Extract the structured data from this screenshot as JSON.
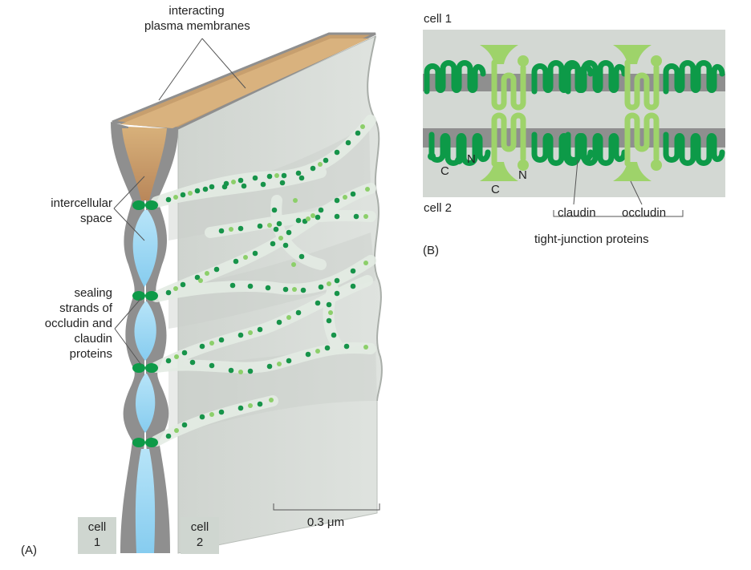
{
  "panel_a": {
    "label_top": [
      "interacting",
      "plasma membranes"
    ],
    "label_space": [
      "intercellular",
      "space"
    ],
    "label_strands": [
      "sealing",
      "strands of",
      "occludin and",
      "claudin",
      "proteins"
    ],
    "cell_left": [
      "cell",
      "1"
    ],
    "cell_right": [
      "cell",
      "2"
    ],
    "scale": "0.3 μm",
    "panel_letter": "(A)"
  },
  "panel_b": {
    "cell_top": "cell 1",
    "cell_bottom": "cell 2",
    "terminals": {
      "c1": "C",
      "n1": "N",
      "c2": "C",
      "n2": "N"
    },
    "claudin": "claudin",
    "occludin": "occludin",
    "group": "tight-junction proteins",
    "panel_letter": "(B)"
  },
  "colors": {
    "membrane_gray": "#8f8f8f",
    "wall_gray": "#d3d8d3",
    "top_tan": "#d9b27e",
    "space_blue": "#9fd9f4",
    "claudin_green": "#0d9a48",
    "occludin_green": "#9ed36a"
  }
}
